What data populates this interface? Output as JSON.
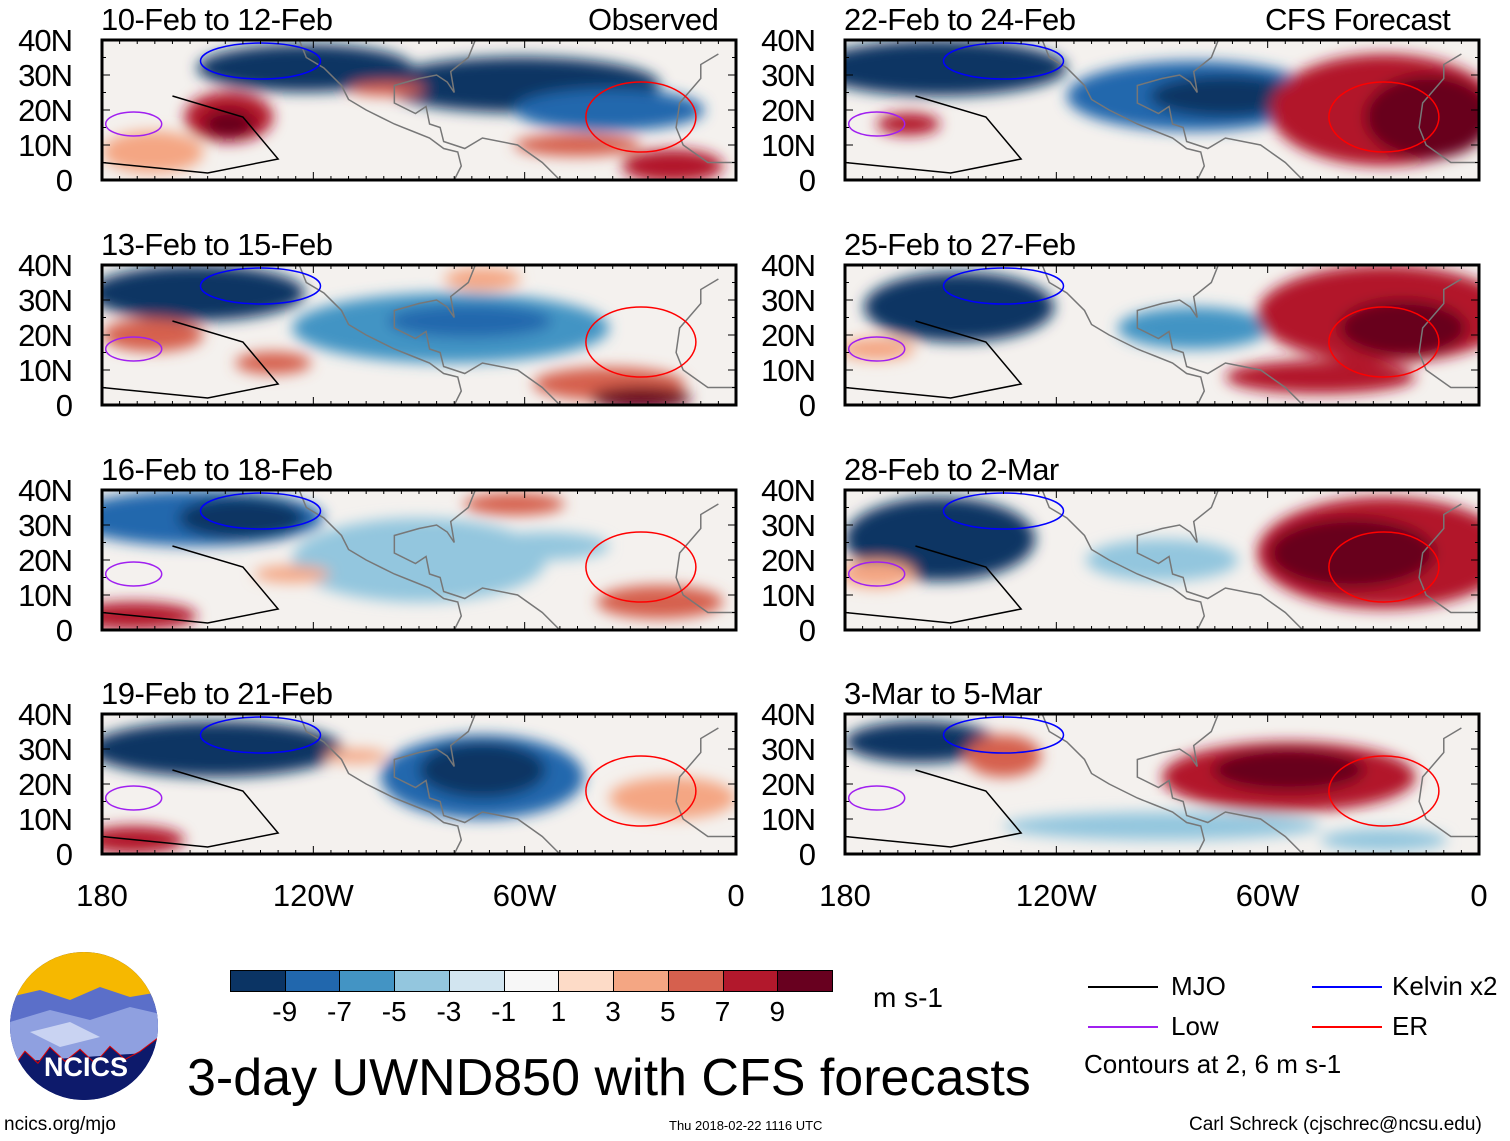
{
  "title": "3-day UWND850 with CFS forecasts",
  "left_column_label": "Observed",
  "right_column_label": "CFS Forecast",
  "panels": [
    {
      "label": "10-Feb to 12-Feb",
      "type": "observed"
    },
    {
      "label": "13-Feb to 15-Feb",
      "type": "observed"
    },
    {
      "label": "16-Feb to 18-Feb",
      "type": "observed"
    },
    {
      "label": "19-Feb to 21-Feb",
      "type": "observed"
    },
    {
      "label": "22-Feb to 24-Feb",
      "type": "forecast"
    },
    {
      "label": "25-Feb to 27-Feb",
      "type": "forecast"
    },
    {
      "label": "28-Feb to 2-Mar",
      "type": "forecast"
    },
    {
      "label": "3-Mar to 5-Mar",
      "type": "forecast"
    }
  ],
  "lat_ticks": [
    "40N",
    "30N",
    "20N",
    "10N",
    "0"
  ],
  "lon_ticks": [
    "180",
    "120W",
    "60W",
    "0"
  ],
  "colorbar": {
    "colors": [
      "#0b3464",
      "#2167ad",
      "#4394c4",
      "#93c6de",
      "#d2e5f0",
      "#f7f7f7",
      "#fddbc7",
      "#f4a683",
      "#d6604e",
      "#b2182c",
      "#68001f"
    ],
    "labels": [
      "-9",
      "-7",
      "-5",
      "-3",
      "-1",
      "1",
      "3",
      "5",
      "7",
      "9"
    ],
    "units": "m s-1"
  },
  "legend": {
    "items": [
      {
        "label": "MJO",
        "color": "#000000"
      },
      {
        "label": "Kelvin x2",
        "color": "#0000ff"
      },
      {
        "label": "Low",
        "color": "#a020f0"
      },
      {
        "label": "ER",
        "color": "#ff0000"
      }
    ],
    "note": "Contours at 2, 6 m s-1"
  },
  "logo_text": "NCICS",
  "footer": {
    "url": "ncics.org/mjo",
    "timestamp": "Thu 2018-02-22 1116 UTC",
    "author": "Carl Schreck (cjschrec@ncsu.edu)"
  }
}
